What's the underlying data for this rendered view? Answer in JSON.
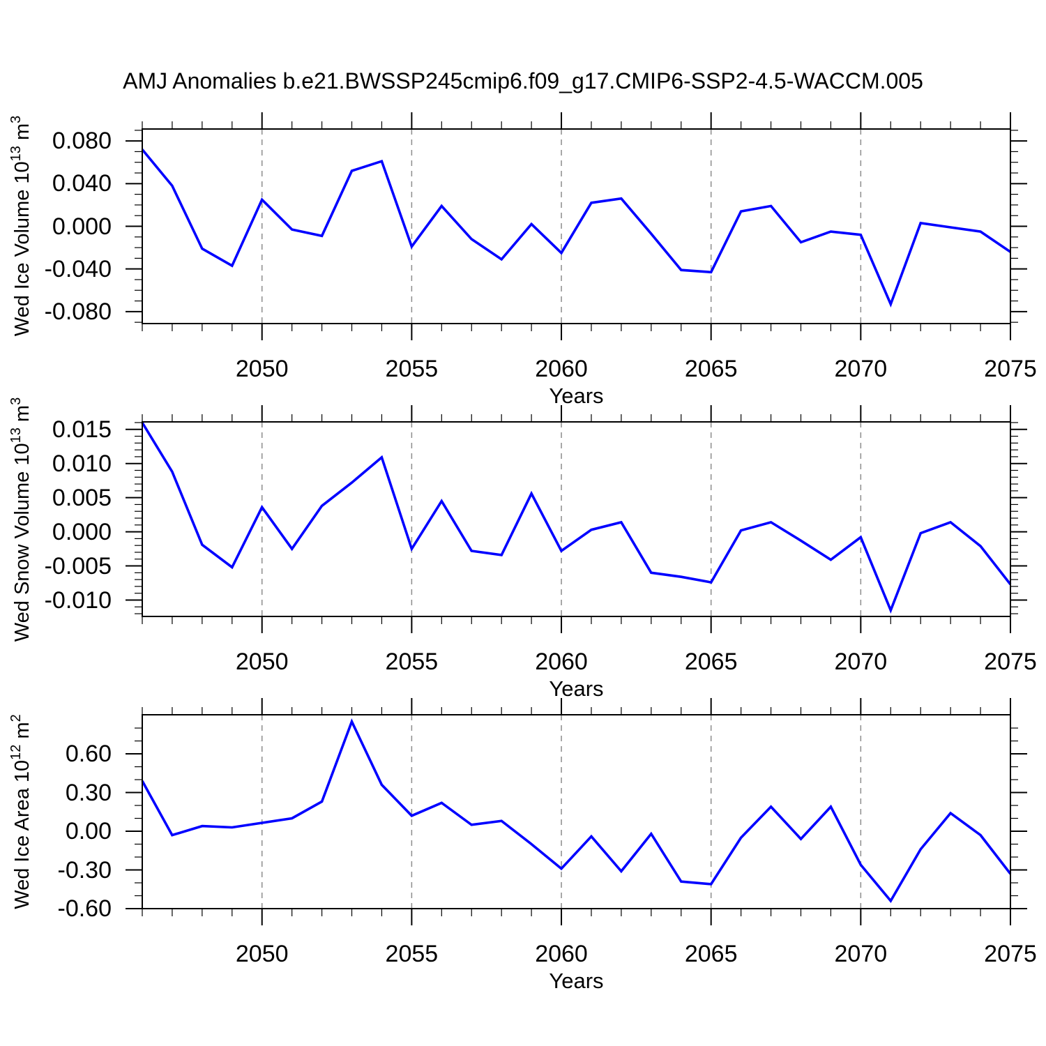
{
  "title": "AMJ Anomalies b.e21.BWSSP245cmip6.f09_g17.CMIP6-SSP2-4.5-WACCM.005",
  "colors": {
    "line": "#0000ff",
    "grid": "#8c8c8c",
    "axis": "#000000",
    "text": "#000000",
    "background": "#ffffff"
  },
  "xaxis": {
    "label": "Years",
    "xlim": [
      2046,
      2075
    ],
    "major_ticks": [
      {
        "value": 2050,
        "label": "2050"
      },
      {
        "value": 2055,
        "label": "2055"
      },
      {
        "value": 2060,
        "label": "2060"
      },
      {
        "value": 2065,
        "label": "2065"
      },
      {
        "value": 2070,
        "label": "2070"
      },
      {
        "value": 2075,
        "label": "2075"
      }
    ],
    "minor_step": 1,
    "gridlines_at": [
      2050,
      2055,
      2060,
      2065,
      2070
    ]
  },
  "chart_data": [
    {
      "type": "line",
      "name": "wed-ice-volume",
      "ylabel_text": "Wed Ice Volume 10^13 m^3",
      "ylabel": {
        "pre": "Wed Ice Volume 10",
        "sup1": "13",
        "mid": " m",
        "sup2": "3"
      },
      "xlabel": "Years",
      "ylim": [
        -0.0912,
        0.0912
      ],
      "ymajor_step": 0.04,
      "yminor_step": 0.01,
      "yticks": [
        {
          "value": 0.08,
          "label": "0.080"
        },
        {
          "value": 0.04,
          "label": "0.040"
        },
        {
          "value": 0.0,
          "label": "0.000"
        },
        {
          "value": -0.04,
          "label": "-0.040"
        },
        {
          "value": -0.08,
          "label": "-0.080"
        }
      ],
      "years": [
        2046,
        2047,
        2048,
        2049,
        2050,
        2051,
        2052,
        2053,
        2054,
        2055,
        2056,
        2057,
        2058,
        2059,
        2060,
        2061,
        2062,
        2063,
        2064,
        2065,
        2066,
        2067,
        2068,
        2069,
        2070,
        2071,
        2072,
        2073,
        2074,
        2075
      ],
      "values": [
        0.072,
        0.038,
        -0.021,
        -0.037,
        0.025,
        -0.003,
        -0.009,
        0.052,
        0.061,
        -0.019,
        0.019,
        -0.012,
        -0.031,
        0.002,
        -0.025,
        0.022,
        0.026,
        -0.007,
        -0.041,
        -0.043,
        0.014,
        0.019,
        -0.015,
        -0.005,
        -0.008,
        -0.073,
        0.003,
        -0.001,
        -0.005,
        -0.024
      ]
    },
    {
      "type": "line",
      "name": "wed-snow-volume",
      "ylabel_text": "Wed Snow Volume 10^13 m^3",
      "ylabel": {
        "pre": "Wed Snow Volume 10",
        "sup1": "13",
        "mid": " m",
        "sup2": "3"
      },
      "xlabel": "Years",
      "ylim": [
        -0.0124,
        0.0161
      ],
      "ymajor_step": 0.005,
      "yminor_step": 0.001,
      "yticks": [
        {
          "value": 0.015,
          "label": "0.015"
        },
        {
          "value": 0.01,
          "label": "0.010"
        },
        {
          "value": 0.005,
          "label": "0.005"
        },
        {
          "value": 0.0,
          "label": "0.000"
        },
        {
          "value": -0.005,
          "label": "-0.005"
        },
        {
          "value": -0.01,
          "label": "-0.010"
        }
      ],
      "years": [
        2046,
        2047,
        2048,
        2049,
        2050,
        2051,
        2052,
        2053,
        2054,
        2055,
        2056,
        2057,
        2058,
        2059,
        2060,
        2061,
        2062,
        2063,
        2064,
        2065,
        2066,
        2067,
        2068,
        2069,
        2070,
        2071,
        2072,
        2073,
        2074,
        2075
      ],
      "values": [
        0.016,
        0.0088,
        -0.0019,
        -0.0052,
        0.0036,
        -0.0025,
        0.0038,
        0.0072,
        0.0109,
        -0.0025,
        0.0045,
        -0.0028,
        -0.0034,
        0.0056,
        -0.0028,
        0.0003,
        0.0014,
        -0.006,
        -0.0066,
        -0.0074,
        0.0002,
        0.0014,
        -0.0013,
        -0.0041,
        -0.0008,
        -0.0115,
        -0.0002,
        0.0014,
        -0.0021,
        -0.0077
      ]
    },
    {
      "type": "line",
      "name": "wed-ice-area",
      "ylabel_text": "Wed Ice Area 10^12 m^2",
      "ylabel": {
        "pre": "Wed Ice Area 10",
        "sup1": "12",
        "mid": " m",
        "sup2": "2"
      },
      "xlabel": "Years",
      "ylim": [
        -0.6,
        0.903
      ],
      "ymajor_step": 0.3,
      "yminor_step": 0.1,
      "yticks": [
        {
          "value": 0.6,
          "label": "0.60"
        },
        {
          "value": 0.3,
          "label": "0.30"
        },
        {
          "value": 0.0,
          "label": "0.00"
        },
        {
          "value": -0.3,
          "label": "-0.30"
        },
        {
          "value": -0.6,
          "label": "-0.60"
        }
      ],
      "years": [
        2046,
        2047,
        2048,
        2049,
        2050,
        2051,
        2052,
        2053,
        2054,
        2055,
        2056,
        2057,
        2058,
        2059,
        2060,
        2061,
        2062,
        2063,
        2064,
        2065,
        2066,
        2067,
        2068,
        2069,
        2070,
        2071,
        2072,
        2073,
        2074,
        2075
      ],
      "values": [
        0.39,
        -0.03,
        0.04,
        0.03,
        0.065,
        0.1,
        0.23,
        0.85,
        0.36,
        0.12,
        0.22,
        0.05,
        0.08,
        -0.1,
        -0.29,
        -0.04,
        -0.31,
        -0.02,
        -0.39,
        -0.41,
        -0.05,
        0.19,
        -0.06,
        0.19,
        -0.26,
        -0.54,
        -0.14,
        0.14,
        -0.03,
        -0.33
      ]
    }
  ]
}
